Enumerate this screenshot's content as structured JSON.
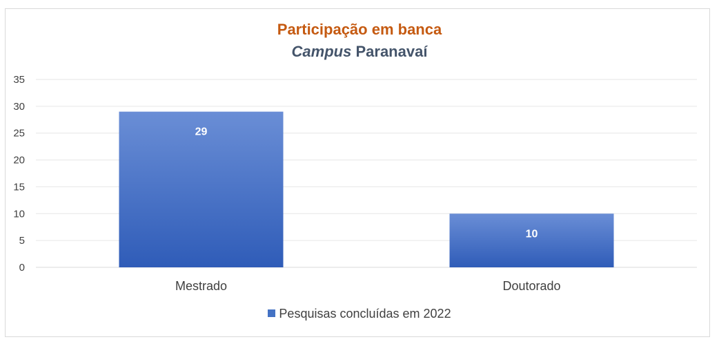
{
  "chart_data": {
    "type": "bar",
    "title": "Participação em banca",
    "subtitle_italic": "Campus",
    "subtitle_rest": "Paranavaí",
    "categories": [
      "Mestrado",
      "Doutorado"
    ],
    "series": [
      {
        "name": "Pesquisas concluídas em 2022",
        "values": [
          29,
          10
        ]
      }
    ],
    "ylim": [
      0,
      35
    ],
    "yticks": [
      0,
      5,
      10,
      15,
      20,
      25,
      30,
      35
    ],
    "grid": true,
    "legend": "bottom",
    "bar_color": "#4472c4"
  }
}
